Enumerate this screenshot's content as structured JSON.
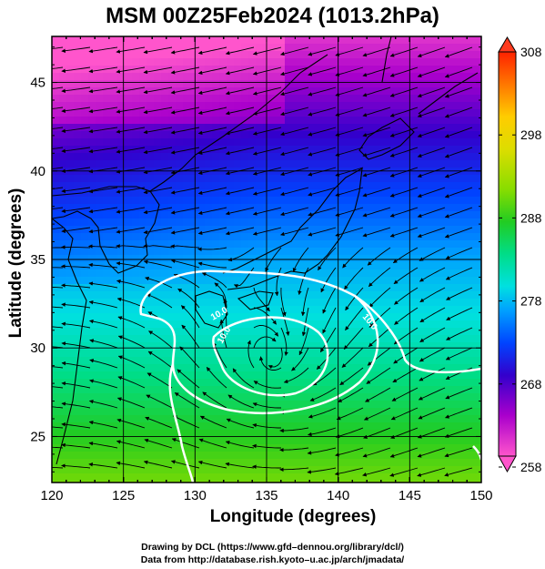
{
  "title": "MSM 00Z25Feb2024 (1013.2hPa)",
  "xlabel": "Longitude (degrees)",
  "ylabel": "Latitude  (degrees)",
  "credit_line1": "Drawing by DCL (https://www.gfd–dennou.org/library/dcl/)",
  "credit_line2": "Data from http://database.rish.kyoto–u.ac.jp/arch/jmadata/",
  "x_ticks": [
    "120",
    "125",
    "130",
    "135",
    "140",
    "145",
    "150"
  ],
  "y_ticks": [
    "25",
    "30",
    "35",
    "40",
    "45"
  ],
  "colorbar": {
    "ticks": [
      "258",
      "268",
      "278",
      "288",
      "298",
      "308"
    ],
    "range": [
      258,
      308
    ],
    "colors": [
      "#ff55cc",
      "#aa00cc",
      "#3300cc",
      "#0044ff",
      "#00a0ff",
      "#00e0e0",
      "#00dd88",
      "#22cc22",
      "#88dd00",
      "#dddd00",
      "#ffcc00",
      "#ff7700",
      "#ff2200"
    ]
  },
  "contour_labels": [
    "10.0",
    "10.0",
    "10.0"
  ],
  "chart_data": {
    "type": "map",
    "title": "MSM 00Z25Feb2024 (1013.2hPa)",
    "xlabel": "Longitude (degrees)",
    "ylabel": "Latitude  (degrees)",
    "xlim": [
      120,
      150
    ],
    "ylim": [
      22.4,
      47.6
    ],
    "field": "temperature (K) shaded, wind streamlines, white contours",
    "colorbar_range": [
      258,
      308
    ],
    "low_center": [
      135.5,
      29.2
    ]
  }
}
